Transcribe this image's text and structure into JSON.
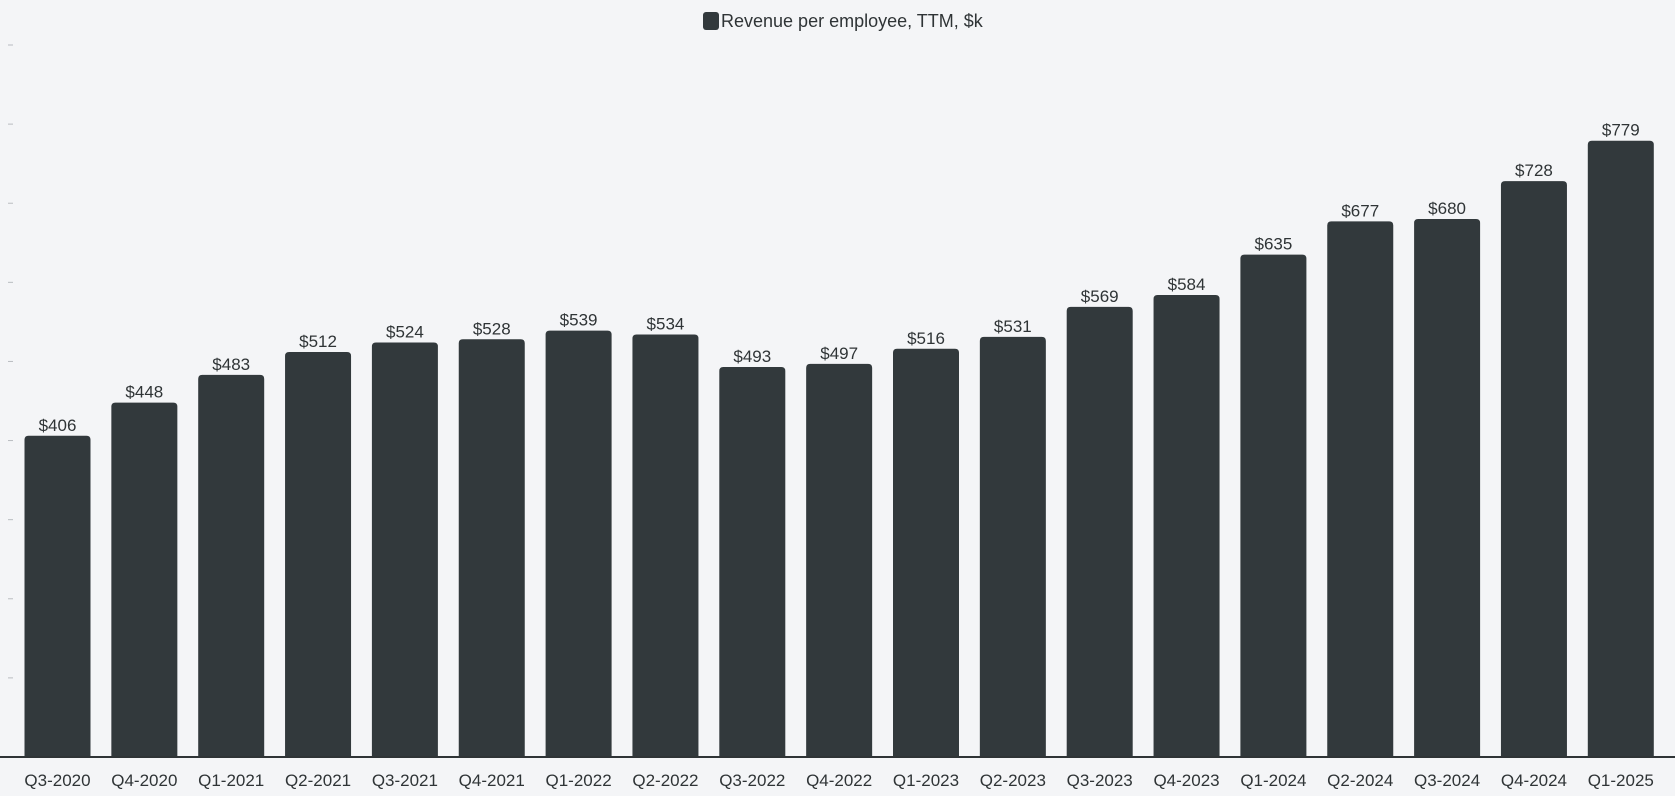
{
  "legend": {
    "label": "Revenue per employee, TTM, $k"
  },
  "colors": {
    "bar": "#32393c",
    "background": "#f4f5f7",
    "axis": "#2f3436",
    "tick": "#b9bcc0"
  },
  "chart_data": {
    "type": "bar",
    "categories": [
      "Q3-2020",
      "Q4-2020",
      "Q1-2021",
      "Q2-2021",
      "Q3-2021",
      "Q4-2021",
      "Q1-2022",
      "Q2-2022",
      "Q3-2022",
      "Q4-2022",
      "Q1-2023",
      "Q2-2023",
      "Q3-2023",
      "Q4-2023",
      "Q1-2024",
      "Q2-2024",
      "Q3-2024",
      "Q4-2024",
      "Q1-2025"
    ],
    "series": [
      {
        "name": "Revenue per employee, TTM, $k",
        "values": [
          406,
          448,
          483,
          512,
          524,
          528,
          539,
          534,
          493,
          497,
          516,
          531,
          569,
          584,
          635,
          677,
          680,
          728,
          779
        ],
        "labels": [
          "$406",
          "$448",
          "$483",
          "$512",
          "$524",
          "$528",
          "$539",
          "$534",
          "$493",
          "$497",
          "$516",
          "$531",
          "$569",
          "$584",
          "$635",
          "$677",
          "$680",
          "$728",
          "$779"
        ]
      }
    ],
    "ylim": [
      0,
      900
    ],
    "y_tick_labels_shown": false,
    "grid": false,
    "legend_position": "top-center"
  }
}
